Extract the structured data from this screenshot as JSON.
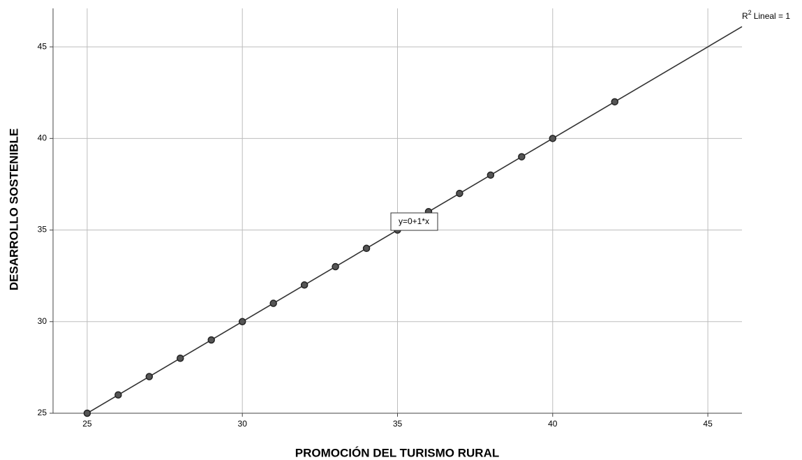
{
  "chart_data": {
    "type": "scatter",
    "x_label": "PROMOCIÓN DEL TURISMO RURAL",
    "y_label": "DESARROLLO SOSTENIBLE",
    "x": [
      25,
      26,
      27,
      28,
      29,
      30,
      31,
      32,
      33,
      34,
      35,
      36,
      37,
      38,
      39,
      40,
      42
    ],
    "values": [
      25,
      26,
      27,
      28,
      29,
      30,
      31,
      32,
      33,
      34,
      35,
      36,
      37,
      38,
      39,
      40,
      42
    ],
    "color": "#555555",
    "xlim": [
      23.9,
      46.1
    ],
    "ylim": [
      25,
      47.1
    ],
    "xticks": [
      25,
      30,
      35,
      40,
      45
    ],
    "yticks": [
      25,
      30,
      35,
      40,
      45
    ],
    "grid": true,
    "fit_line": {
      "intercept": 0,
      "slope": 1,
      "label": "y=0+1*x",
      "color": "#333333"
    },
    "r2_annotation": {
      "base": "R",
      "superscript": "2",
      "text": "Lineal = 1"
    }
  }
}
